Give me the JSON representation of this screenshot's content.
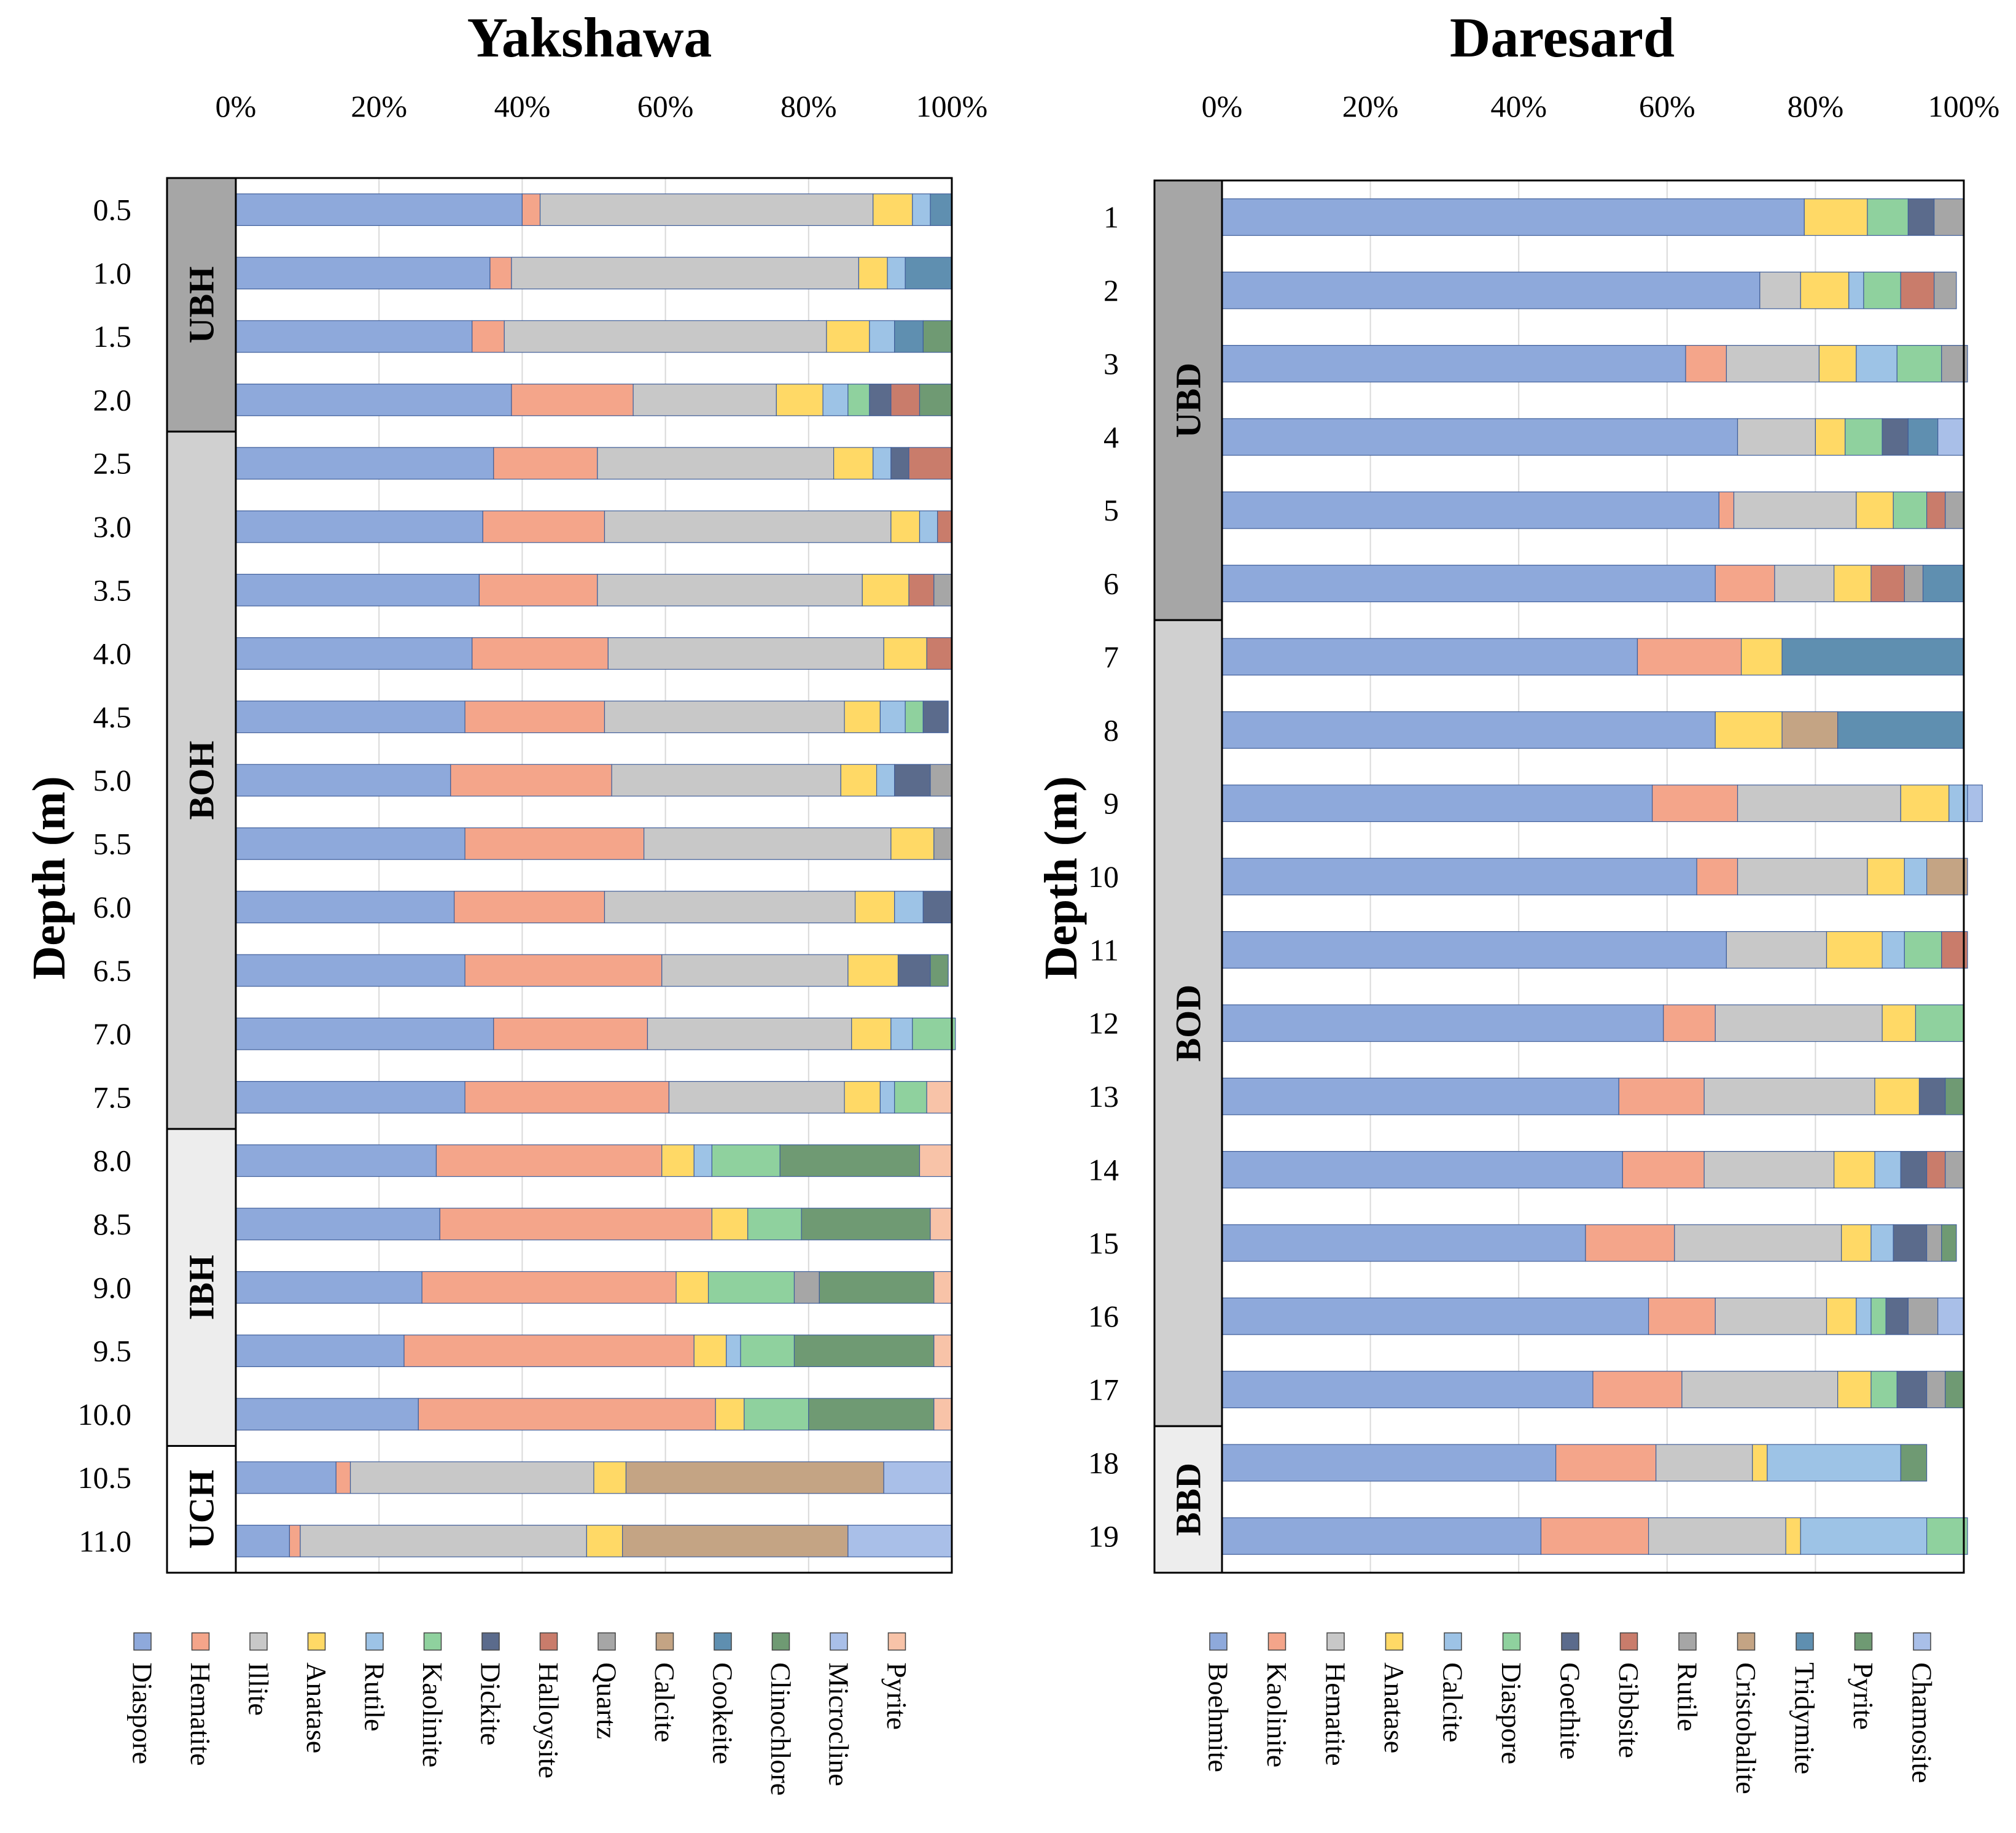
{
  "colors": {
    "blue": "#8EA9DB",
    "salmon": "#F4A58A",
    "gray": "#C8C8C8",
    "yellow": "#FFD966",
    "lightblue": "#9DC3E6",
    "green": "#8FD19E",
    "navy": "#5B6B8C",
    "brick": "#C97C6B",
    "midgray": "#A6A6A6",
    "tan": "#C4A484",
    "steel": "#5F8FB0",
    "darkgreen": "#6F9A73",
    "periwinkle": "#A9BFE8",
    "peach": "#F8C3A8",
    "zone_dark": "#A6A6A6",
    "zone_mid": "#D0D0D0",
    "zone_light": "#EDEDED",
    "zone_white": "#FFFFFF"
  },
  "chart_data": [
    {
      "type": "stacked-bar-horizontal",
      "title": "Yakshawa",
      "ylabel": "Depth (m)",
      "xlim": [
        0,
        100
      ],
      "x_ticks": [
        "0%",
        "20%",
        "40%",
        "60%",
        "80%",
        "100%"
      ],
      "categories": [
        "0.5",
        "1.0",
        "1.5",
        "2.0",
        "2.5",
        "3.0",
        "3.5",
        "4.0",
        "4.5",
        "5.0",
        "5.5",
        "6.0",
        "6.5",
        "7.0",
        "7.5",
        "8.0",
        "8.5",
        "9.0",
        "9.5",
        "10.0",
        "10.5",
        "11.0"
      ],
      "zones": [
        {
          "label": "UBH",
          "from": 0,
          "to": 3,
          "color": "zone_dark"
        },
        {
          "label": "BOH",
          "from": 4,
          "to": 14,
          "color": "zone_mid"
        },
        {
          "label": "IBH",
          "from": 15,
          "to": 19,
          "color": "zone_light"
        },
        {
          "label": "UCH",
          "from": 20,
          "to": 21,
          "color": "zone_white"
        }
      ],
      "series": [
        {
          "name": "Diaspore",
          "color": "blue",
          "values": [
            40,
            35.5,
            33,
            38.5,
            36,
            34.5,
            34,
            33,
            32,
            30,
            32,
            30.5,
            32,
            36,
            32,
            28,
            28.5,
            26,
            23.5,
            25.5,
            14,
            7.5
          ]
        },
        {
          "name": "Hematite",
          "color": "salmon",
          "values": [
            2.5,
            3,
            4.5,
            17,
            14.5,
            17,
            16.5,
            19,
            19.5,
            22.5,
            25,
            21,
            27.5,
            21.5,
            28.5,
            31.5,
            38,
            35.5,
            40.5,
            41.5,
            2,
            1.5
          ]
        },
        {
          "name": "Illite",
          "color": "gray",
          "values": [
            46.5,
            48.5,
            45,
            20,
            33,
            40,
            37,
            38.5,
            33.5,
            32,
            34.5,
            35,
            26,
            28.5,
            24.5,
            0,
            0,
            0,
            0,
            0,
            34,
            40
          ]
        },
        {
          "name": "Anatase",
          "color": "yellow",
          "values": [
            5.5,
            4,
            6,
            6.5,
            5.5,
            4,
            6.5,
            6,
            5,
            5,
            6,
            5.5,
            7,
            5.5,
            5,
            4.5,
            5,
            4.5,
            4.5,
            4,
            4.5,
            5
          ]
        },
        {
          "name": "Rutile",
          "color": "lightblue",
          "values": [
            2.5,
            2.5,
            3.5,
            3.5,
            2.5,
            2.5,
            0,
            0,
            3.5,
            2.5,
            0,
            4,
            0,
            3,
            2,
            2.5,
            0,
            0,
            2,
            0,
            0,
            0
          ]
        },
        {
          "name": "Kaolinite",
          "color": "green",
          "values": [
            0,
            0,
            0,
            3,
            0,
            0,
            0,
            0,
            2.5,
            0,
            0,
            0,
            0,
            6,
            4.5,
            9.5,
            7.5,
            12,
            7.5,
            9,
            0,
            0
          ]
        },
        {
          "name": "Dickite",
          "color": "navy",
          "values": [
            0,
            0,
            0,
            3,
            2.5,
            0,
            0,
            0,
            3.5,
            5,
            0,
            4,
            4.5,
            0,
            0,
            0,
            0,
            0,
            0,
            0,
            0,
            0
          ]
        },
        {
          "name": "Halloysite",
          "color": "brick",
          "values": [
            0,
            0,
            0,
            4,
            6,
            2,
            3.5,
            3.5,
            0,
            0,
            0,
            0,
            0,
            0,
            0,
            0,
            0,
            0,
            0,
            0,
            0,
            0
          ]
        },
        {
          "name": "Quartz",
          "color": "midgray",
          "values": [
            0,
            0,
            0,
            0,
            0,
            0,
            2.5,
            0,
            0,
            3,
            2.5,
            0,
            0,
            0,
            0,
            0,
            0,
            3.5,
            0,
            0,
            0,
            0
          ]
        },
        {
          "name": "Calcite",
          "color": "tan",
          "values": [
            0,
            0,
            0,
            0,
            0,
            0,
            0,
            0,
            0,
            0,
            0,
            0,
            0,
            0,
            0,
            0,
            0,
            0,
            0,
            0,
            36,
            31.5
          ]
        },
        {
          "name": "Cookeite",
          "color": "steel",
          "values": [
            3,
            6.5,
            4,
            0,
            0,
            0,
            0,
            0,
            0,
            0,
            0,
            0,
            0,
            0,
            0,
            0,
            0,
            0,
            0,
            0,
            0,
            0
          ]
        },
        {
          "name": "Clinochlore",
          "color": "darkgreen",
          "values": [
            0,
            0,
            4,
            4.5,
            0,
            0,
            0,
            0,
            0,
            0,
            0,
            0,
            2.5,
            0,
            0,
            19.5,
            18,
            16,
            19.5,
            17.5,
            0,
            0
          ]
        },
        {
          "name": "Microcline",
          "color": "periwinkle",
          "values": [
            0,
            0,
            0,
            0,
            0,
            0,
            0,
            0,
            0,
            0,
            0,
            0,
            0,
            0,
            0,
            0,
            0,
            0,
            0,
            0,
            9.5,
            14.5
          ]
        },
        {
          "name": "Pyrite",
          "color": "peach",
          "values": [
            0,
            0,
            0,
            0,
            0,
            0,
            0,
            0,
            0,
            0,
            0,
            0,
            0,
            0,
            3.5,
            4.5,
            3,
            2.5,
            2.5,
            2.5,
            0,
            0
          ]
        }
      ]
    },
    {
      "type": "stacked-bar-horizontal",
      "title": "Daresard",
      "ylabel": "Depth (m)",
      "xlim": [
        0,
        100
      ],
      "x_ticks": [
        "0%",
        "20%",
        "40%",
        "60%",
        "80%",
        "100%"
      ],
      "categories": [
        "1",
        "2",
        "3",
        "4",
        "5",
        "6",
        "7",
        "8",
        "9",
        "10",
        "11",
        "12",
        "13",
        "14",
        "15",
        "16",
        "17",
        "18",
        "19"
      ],
      "zones": [
        {
          "label": "UBD",
          "from": 0,
          "to": 5,
          "color": "zone_dark"
        },
        {
          "label": "BOD",
          "from": 6,
          "to": 16,
          "color": "zone_mid"
        },
        {
          "label": "BBD",
          "from": 17,
          "to": 18,
          "color": "zone_light"
        }
      ],
      "series": [
        {
          "name": "Boehmite",
          "color": "blue",
          "values": [
            78.5,
            72.5,
            62.5,
            69.5,
            67,
            66.5,
            56,
            66.5,
            58,
            64,
            68,
            59.5,
            53.5,
            54,
            49,
            57.5,
            50,
            45,
            43
          ]
        },
        {
          "name": "Kaolinite",
          "color": "salmon",
          "values": [
            0,
            0,
            5.5,
            0,
            2,
            8,
            14,
            0,
            11.5,
            5.5,
            0,
            7,
            11.5,
            11,
            12,
            9,
            12,
            13.5,
            14.5
          ]
        },
        {
          "name": "Hematite",
          "color": "gray",
          "values": [
            0,
            5.5,
            12.5,
            10.5,
            16.5,
            8,
            0,
            0,
            22,
            17.5,
            13.5,
            22.5,
            23,
            17.5,
            22.5,
            15,
            21,
            13,
            18.5
          ]
        },
        {
          "name": "Anatase",
          "color": "yellow",
          "values": [
            8.5,
            6.5,
            5,
            4,
            5,
            5,
            5.5,
            9,
            6.5,
            5,
            7.5,
            4.5,
            6,
            5.5,
            4,
            4,
            4.5,
            2,
            2
          ]
        },
        {
          "name": "Calcite",
          "color": "lightblue",
          "values": [
            0,
            2,
            5.5,
            0,
            0,
            0,
            0,
            0,
            2.5,
            3,
            3,
            0,
            0,
            3.5,
            3,
            2,
            0,
            18,
            17
          ]
        },
        {
          "name": "Diaspore",
          "color": "green",
          "values": [
            5.5,
            5,
            6,
            5,
            4.5,
            0,
            0,
            0,
            0,
            0,
            5,
            6.5,
            0,
            0,
            0,
            2,
            3.5,
            0,
            5.5
          ]
        },
        {
          "name": "Goethite",
          "color": "navy",
          "values": [
            3.5,
            0,
            0,
            3.5,
            0,
            0,
            0,
            0,
            0,
            0,
            0,
            0,
            3.5,
            3.5,
            4.5,
            3,
            4,
            0,
            0
          ]
        },
        {
          "name": "Gibbsite",
          "color": "brick",
          "values": [
            0,
            4.5,
            0,
            0,
            2.5,
            4.5,
            0,
            0,
            0,
            0,
            3.5,
            0,
            0,
            2.5,
            0,
            0,
            0,
            0,
            0
          ]
        },
        {
          "name": "Rutile",
          "color": "midgray",
          "values": [
            4,
            3,
            3.5,
            0,
            2.5,
            2.5,
            0,
            0,
            0,
            0,
            0,
            0,
            0,
            2.5,
            2,
            4,
            2.5,
            0,
            0
          ]
        },
        {
          "name": "Cristobalite",
          "color": "tan",
          "values": [
            0,
            0,
            0,
            0,
            0,
            0,
            0,
            7.5,
            0,
            5.5,
            0,
            0,
            0,
            0,
            0,
            0,
            0,
            0,
            0
          ]
        },
        {
          "name": "Tridymite",
          "color": "steel",
          "values": [
            0,
            0,
            0,
            4,
            0,
            5.5,
            24.5,
            17,
            0,
            0,
            0,
            0,
            0,
            0,
            0,
            0,
            0,
            0,
            0
          ]
        },
        {
          "name": "Pyrite",
          "color": "darkgreen",
          "values": [
            0,
            0,
            0,
            0,
            0,
            0,
            0,
            0,
            0,
            0,
            0,
            0,
            2.5,
            0,
            2,
            0,
            2.5,
            3.5,
            0
          ]
        },
        {
          "name": "Chamosite",
          "color": "periwinkle",
          "values": [
            0,
            0,
            0,
            3.5,
            0,
            0,
            0,
            0,
            2,
            0,
            0,
            0,
            0,
            0,
            0,
            3.5,
            0,
            0,
            0
          ]
        }
      ]
    }
  ]
}
